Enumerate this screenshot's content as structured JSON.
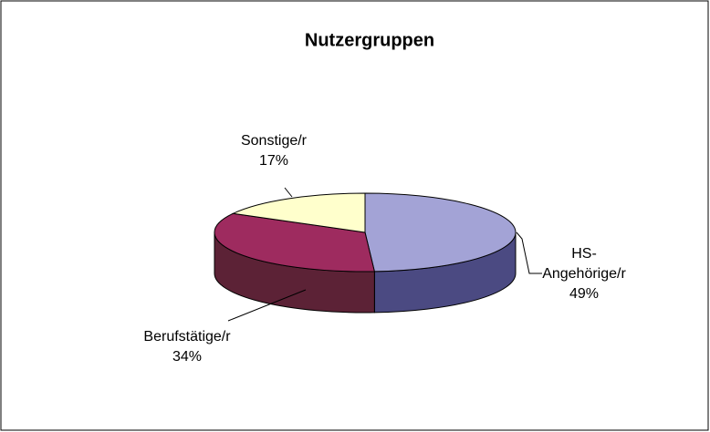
{
  "chart_data": {
    "type": "pie3d",
    "title": "Nutzergruppen",
    "categories": [
      "HS-Angehörige/r",
      "Berufstätige/r",
      "Sonstige/r"
    ],
    "values": [
      49,
      34,
      17
    ],
    "value_labels": [
      "49%",
      "34%",
      "17%"
    ],
    "colors": [
      "#a3a3d6",
      "#9e2b5f",
      "#ffffcc"
    ],
    "side_colors": [
      "#4b4a82",
      "#5c2236",
      "#b3b38f"
    ]
  }
}
